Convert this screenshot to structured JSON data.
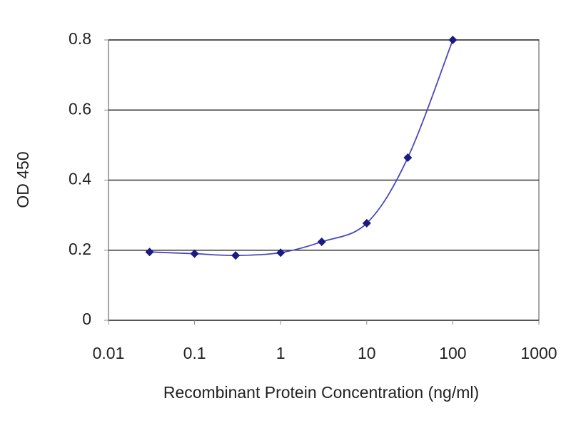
{
  "chart_data": {
    "type": "line",
    "x_label": "Recombinant Protein Concentration (ng/ml)",
    "y_label": "OD 450",
    "x": [
      0.03,
      0.1,
      0.3,
      1,
      3,
      10,
      30,
      100
    ],
    "series": [
      {
        "color": "#1a1a80",
        "values": [
          0.195,
          0.19,
          0.185,
          0.193,
          0.224,
          0.277,
          0.464,
          0.8
        ]
      }
    ],
    "xlim": [
      0.01,
      1000
    ],
    "xticks": [
      0.01,
      0.1,
      1,
      10,
      100,
      1000
    ],
    "xscale": "log",
    "ylim": [
      0,
      0.8
    ],
    "yticks": [
      0,
      0.2,
      0.4,
      0.6,
      0.8
    ],
    "grid": true
  }
}
